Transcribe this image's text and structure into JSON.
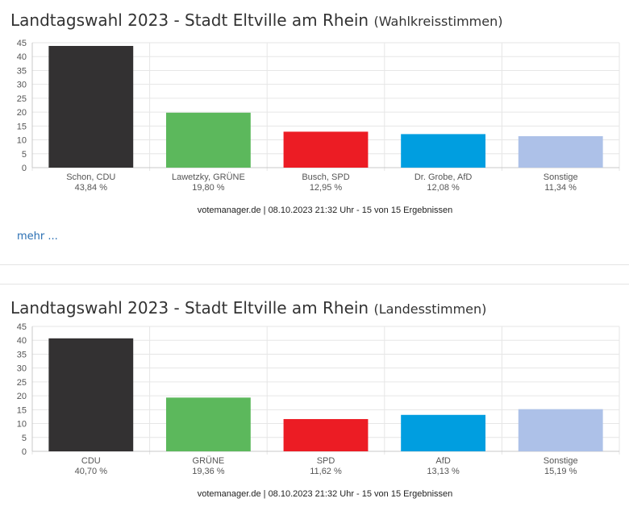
{
  "panels": [
    {
      "title": "Landtagswahl 2023 - Stadt Eltville am Rhein",
      "subtitle": "(Wahlkreisstimmen)",
      "source": "votemanager.de | 08.10.2023 21:32 Uhr - 15 von 15 Ergebnissen",
      "more_link": "mehr ..."
    },
    {
      "title": "Landtagswahl 2023 - Stadt Eltville am Rhein",
      "subtitle": "(Landesstimmen)",
      "source": "votemanager.de | 08.10.2023 21:32 Uhr - 15 von 15 Ergebnissen"
    }
  ],
  "chart_data": [
    {
      "type": "bar",
      "title": "Landtagswahl 2023 - Stadt Eltville am Rhein (Wahlkreisstimmen)",
      "categories": [
        "Schon, CDU",
        "Lawetzky, GRÜNE",
        "Busch, SPD",
        "Dr. Grobe, AfD",
        "Sonstige"
      ],
      "values": [
        43.84,
        19.8,
        12.95,
        12.08,
        11.34
      ],
      "value_labels": [
        "43,84 %",
        "19,80 %",
        "12,95 %",
        "12,08 %",
        "11,34 %"
      ],
      "colors": [
        "#333132",
        "#5cb85c",
        "#ec1c24",
        "#009ee0",
        "#adc1e8"
      ],
      "ylim": [
        0,
        45
      ],
      "yticks": [
        0,
        5,
        10,
        15,
        20,
        25,
        30,
        35,
        40,
        45
      ],
      "grid": true,
      "xlabel": "",
      "ylabel": ""
    },
    {
      "type": "bar",
      "title": "Landtagswahl 2023 - Stadt Eltville am Rhein (Landesstimmen)",
      "categories": [
        "CDU",
        "GRÜNE",
        "SPD",
        "AfD",
        "Sonstige"
      ],
      "values": [
        40.7,
        19.36,
        11.62,
        13.13,
        15.19
      ],
      "value_labels": [
        "40,70 %",
        "19,36 %",
        "11,62 %",
        "13,13 %",
        "15,19 %"
      ],
      "colors": [
        "#333132",
        "#5cb85c",
        "#ec1c24",
        "#009ee0",
        "#adc1e8"
      ],
      "ylim": [
        0,
        45
      ],
      "yticks": [
        0,
        5,
        10,
        15,
        20,
        25,
        30,
        35,
        40,
        45
      ],
      "grid": true,
      "xlabel": "",
      "ylabel": ""
    }
  ]
}
